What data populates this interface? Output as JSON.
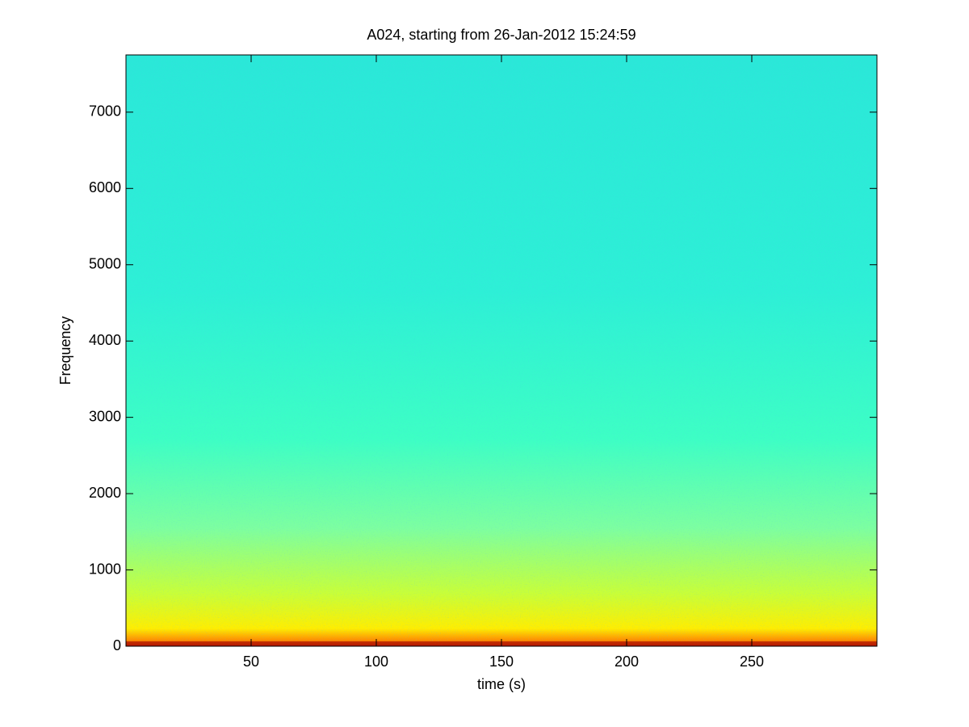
{
  "chart_data": {
    "type": "spectrogram",
    "title": "A024, starting from 26-Jan-2012 15:24:59",
    "xlabel": "time (s)",
    "ylabel": "Frequency",
    "xlim": [
      0,
      300
    ],
    "xticks": [
      50,
      100,
      150,
      200,
      250
    ],
    "ylim": [
      0,
      7750
    ],
    "yticks": [
      0,
      1000,
      2000,
      3000,
      4000,
      5000,
      6000,
      7000
    ]
  }
}
